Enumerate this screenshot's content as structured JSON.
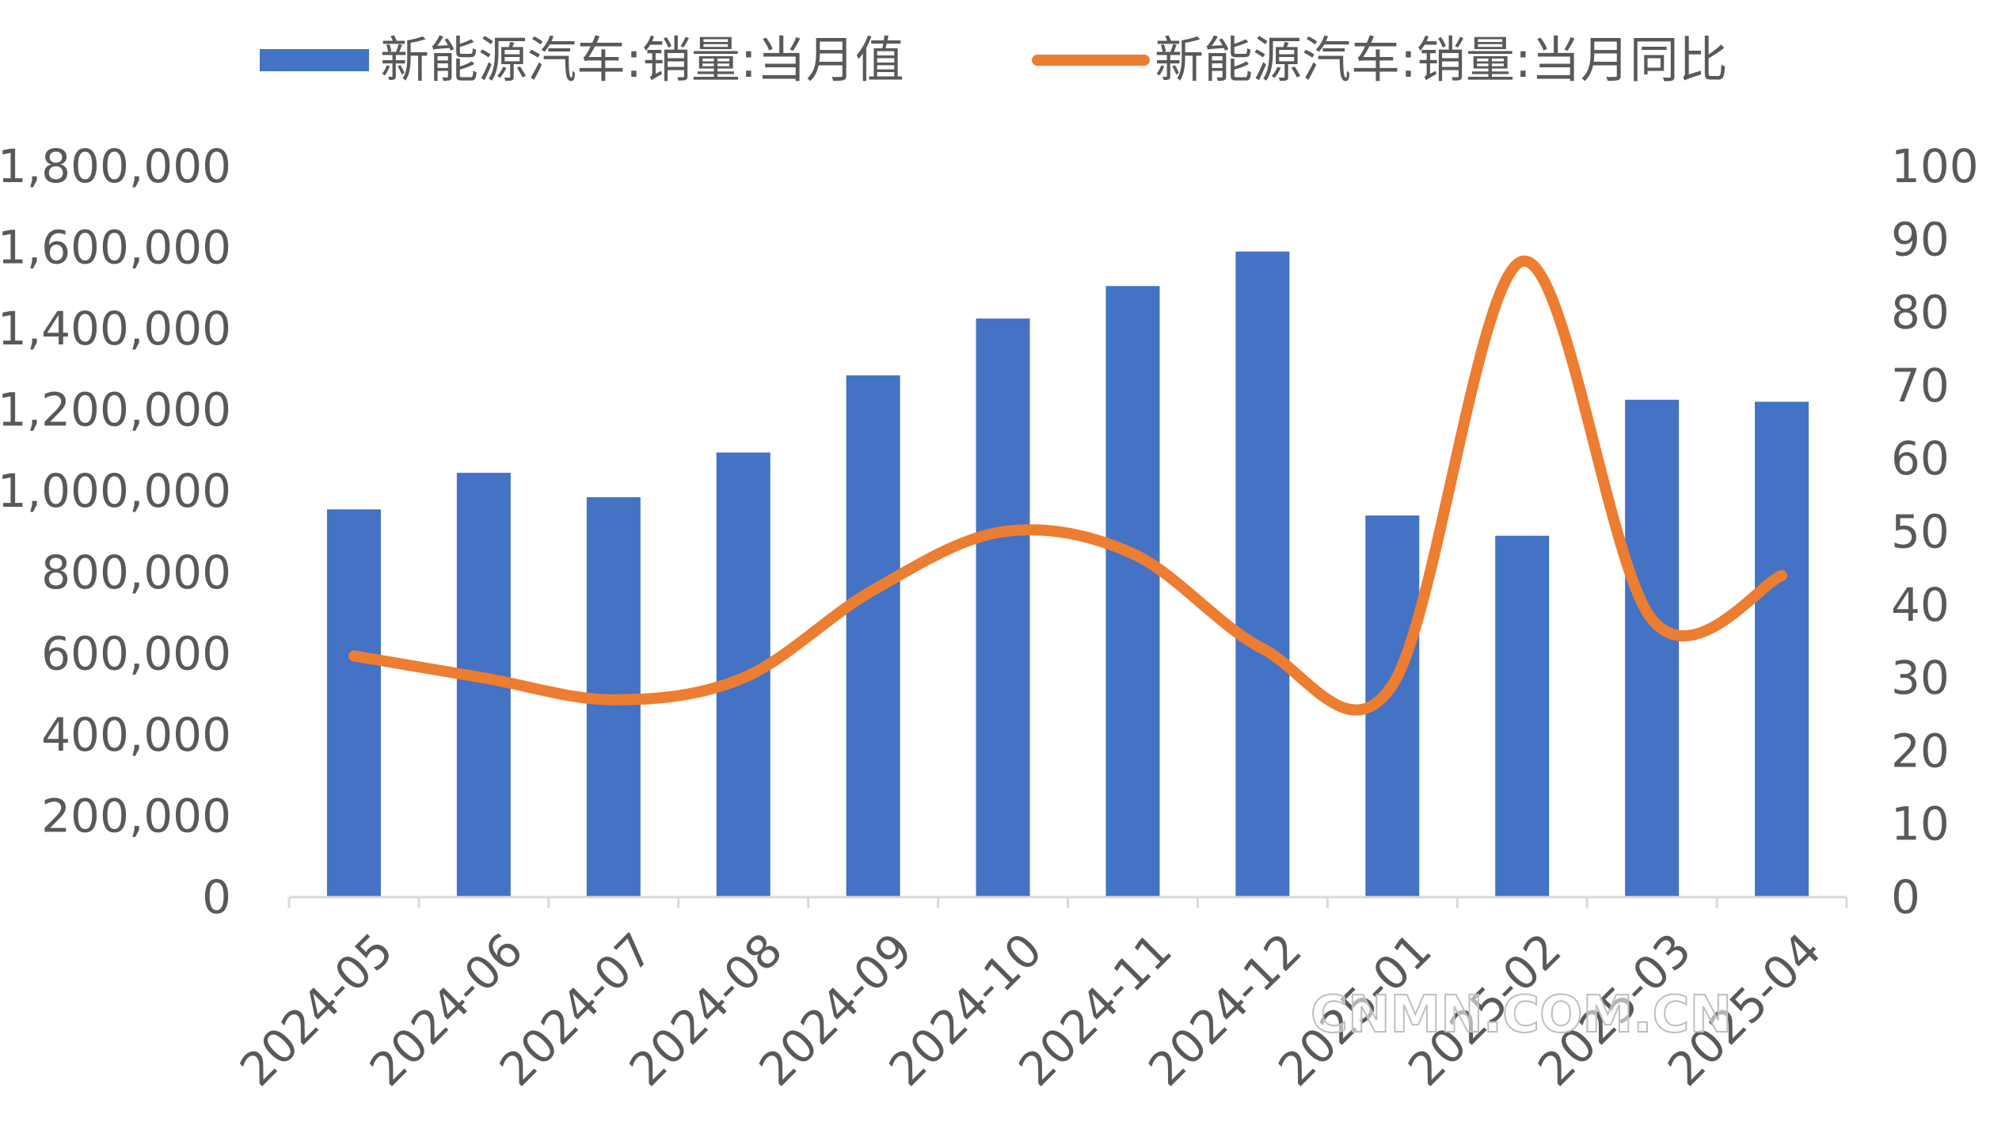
{
  "chart_data": {
    "type": "bar",
    "categories": [
      "2024-05",
      "2024-06",
      "2024-07",
      "2024-08",
      "2024-09",
      "2024-10",
      "2024-11",
      "2024-12",
      "2025-01",
      "2025-02",
      "2025-03",
      "2025-04"
    ],
    "series": [
      {
        "name": "新能源汽车:销量:当月值",
        "type": "bar",
        "axis": "left",
        "color": "#4472C4",
        "values": [
          955000,
          1045000,
          985000,
          1095000,
          1285000,
          1425000,
          1505000,
          1590000,
          940000,
          890000,
          1225000,
          1220000
        ]
      },
      {
        "name": "新能源汽车:销量:当月同比",
        "type": "line",
        "axis": "right",
        "color": "#ED7D31",
        "values": [
          33,
          30,
          27,
          30,
          42,
          50,
          47,
          34,
          29,
          87,
          38,
          44
        ]
      }
    ],
    "y_left": {
      "min": 0,
      "max": 1800000,
      "ticks": [
        0,
        200000,
        400000,
        600000,
        800000,
        1000000,
        1200000,
        1400000,
        1600000,
        1800000
      ],
      "tick_labels": [
        "0",
        "200,000",
        "400,000",
        "600,000",
        "800,000",
        "1,000,000",
        "1,200,000",
        "1,400,000",
        "1,600,000",
        "1,800,000"
      ]
    },
    "y_right": {
      "min": 0,
      "max": 100,
      "ticks": [
        0,
        10,
        20,
        30,
        40,
        50,
        60,
        70,
        80,
        90,
        100
      ],
      "tick_labels": [
        "0",
        "10",
        "20",
        "30",
        "40",
        "50",
        "60",
        "70",
        "80",
        "90",
        "100"
      ]
    },
    "legend": "top",
    "grid": false
  },
  "watermark": "CNMN.COM.CN"
}
